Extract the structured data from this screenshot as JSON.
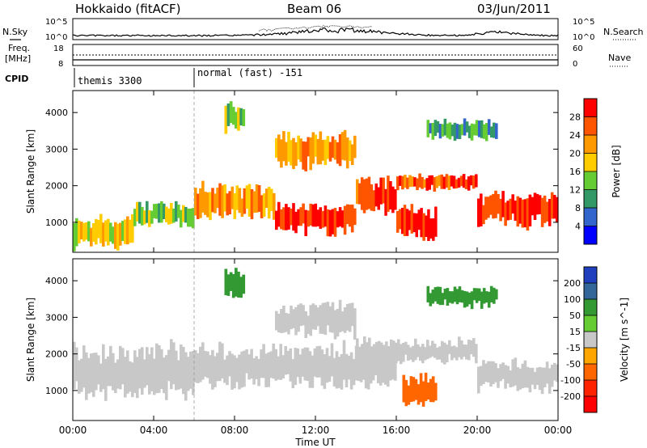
{
  "header": {
    "station": "Hokkaido (fitACF)",
    "beam": "Beam 06",
    "date": "03/Jun/2011"
  },
  "summary_panels": {
    "nsky": {
      "label": "N.Sky",
      "ticks": [
        "10^5",
        "10^0"
      ]
    },
    "nsearch": {
      "label": "N.Search",
      "ticks": [
        "10^5",
        "10^0"
      ]
    },
    "freq": {
      "label_top": "Freq.",
      "label_bot": "[MHz]",
      "ticks": [
        "18",
        "8"
      ]
    },
    "nave": {
      "label": "Nave",
      "ticks": [
        "60",
        "0"
      ]
    },
    "cpid": {
      "label": "CPID",
      "modes": [
        {
          "name": "themis 3300",
          "start_hour": 0
        },
        {
          "name": "normal (fast) -151",
          "start_hour": 6
        }
      ]
    }
  },
  "colors": {
    "power": [
      "#0000ff",
      "#3366cc",
      "#339966",
      "#66cc33",
      "#ffcc00",
      "#ff9900",
      "#ff5500",
      "#ff0000"
    ],
    "velocity": [
      "#1f3fbf",
      "#336699",
      "#339933",
      "#66cc33",
      "#c8c8c8",
      "#ffa500",
      "#ff6600",
      "#ff2200",
      "#ff0000"
    ],
    "ground_scatter": "#bebebe"
  },
  "chart_data": [
    {
      "type": "heatmap",
      "title": "Power",
      "xlabel": "Time UT",
      "ylabel": "Slant Range [km]",
      "xlim": [
        0,
        24
      ],
      "ylim": [
        180,
        4600
      ],
      "x_ticks": [
        "00:00",
        "04:00",
        "08:00",
        "12:00",
        "16:00",
        "20:00",
        "00:00"
      ],
      "y_ticks": [
        "1000",
        "2000",
        "3000",
        "4000"
      ],
      "colorbar": {
        "label": "Power [dB]",
        "ticks": [
          "4",
          "8",
          "12",
          "16",
          "20",
          "24",
          "28"
        ],
        "range": [
          0,
          32
        ]
      },
      "bands": [
        {
          "x": [
            0,
            3
          ],
          "y": [
            300,
            1100
          ],
          "value": 18
        },
        {
          "x": [
            3,
            6
          ],
          "y": [
            900,
            1500
          ],
          "value": 15
        },
        {
          "x": [
            6,
            10
          ],
          "y": [
            1100,
            2000
          ],
          "value": 22
        },
        {
          "x": [
            10,
            14
          ],
          "y": [
            700,
            1500
          ],
          "value": 28
        },
        {
          "x": [
            14,
            16
          ],
          "y": [
            1200,
            2200
          ],
          "value": 27
        },
        {
          "x": [
            16,
            20
          ],
          "y": [
            1900,
            2300
          ],
          "value": 27
        },
        {
          "x": [
            20,
            24
          ],
          "y": [
            900,
            1800
          ],
          "value": 28
        },
        {
          "x": [
            16,
            18
          ],
          "y": [
            500,
            1400
          ],
          "value": 29
        },
        {
          "x": [
            10,
            14
          ],
          "y": [
            2500,
            3400
          ],
          "value": 22
        },
        {
          "x": [
            7.5,
            8.5
          ],
          "y": [
            3500,
            4300
          ],
          "value": 14
        },
        {
          "x": [
            17.5,
            21
          ],
          "y": [
            3300,
            3800
          ],
          "value": 10
        }
      ]
    },
    {
      "type": "heatmap",
      "title": "Velocity",
      "xlabel": "Time UT",
      "ylabel": "Slant Range [km]",
      "xlim": [
        0,
        24
      ],
      "ylim": [
        180,
        4600
      ],
      "x_ticks": [
        "00:00",
        "04:00",
        "08:00",
        "12:00",
        "16:00",
        "20:00",
        "00:00"
      ],
      "y_ticks": [
        "1000",
        "2000",
        "3000",
        "4000"
      ],
      "colorbar": {
        "label": "Velocity [m s^-1]",
        "ticks": [
          "200",
          "100",
          "50",
          "15",
          "-15",
          "-50",
          "-100",
          "-200"
        ]
      },
      "bands": [
        {
          "x": [
            0,
            6
          ],
          "y": [
            800,
            2200
          ],
          "value": 0
        },
        {
          "x": [
            6,
            16
          ],
          "y": [
            1100,
            2200
          ],
          "value": 0
        },
        {
          "x": [
            14,
            20
          ],
          "y": [
            1800,
            2400
          ],
          "value": 0
        },
        {
          "x": [
            20,
            24
          ],
          "y": [
            1000,
            1800
          ],
          "value": 0
        },
        {
          "x": [
            16.3,
            18
          ],
          "y": [
            600,
            1400
          ],
          "value": -80
        },
        {
          "x": [
            10,
            14
          ],
          "y": [
            2500,
            3400
          ],
          "value": 0
        },
        {
          "x": [
            7.5,
            8.5
          ],
          "y": [
            3500,
            4300
          ],
          "value": 40
        },
        {
          "x": [
            17.5,
            21
          ],
          "y": [
            3300,
            3800
          ],
          "value": 45
        }
      ]
    }
  ]
}
